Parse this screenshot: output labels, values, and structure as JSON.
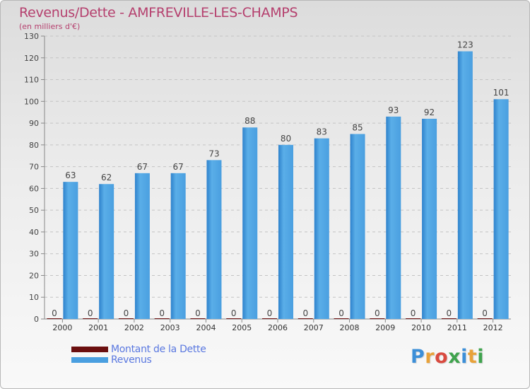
{
  "title": "Revenus/Dette - AMFREVILLE-LES-CHAMPS",
  "subtitle": "(en milliers d'€)",
  "brand": {
    "text": "Proxiti",
    "letter_colors": [
      "#3c8fd8",
      "#e8a23a",
      "#d94a3f",
      "#3fa34d",
      "#3c8fd8",
      "#e8a23a",
      "#3fa34d"
    ]
  },
  "legend": [
    {
      "label": "Montant de la Dette",
      "color": "#6b0f0f"
    },
    {
      "label": "Revenus",
      "color": "#4a9fe0"
    }
  ],
  "chart_data": {
    "type": "bar",
    "categories": [
      "2000",
      "2001",
      "2002",
      "2003",
      "2004",
      "2005",
      "2006",
      "2007",
      "2008",
      "2009",
      "2010",
      "2011",
      "2012"
    ],
    "series": [
      {
        "name": "Montant de la Dette",
        "color": "#6b0f0f",
        "values": [
          0,
          0,
          0,
          0,
          0,
          0,
          0,
          0,
          0,
          0,
          0,
          0,
          0
        ]
      },
      {
        "name": "Revenus",
        "color": "#4a9fe0",
        "values": [
          63,
          62,
          67,
          67,
          73,
          88,
          80,
          83,
          85,
          93,
          92,
          123,
          101
        ]
      }
    ],
    "ylim": [
      0,
      130
    ],
    "yticks": [
      0,
      10,
      20,
      30,
      40,
      50,
      60,
      70,
      80,
      90,
      100,
      110,
      120,
      130
    ],
    "grid": true,
    "legend_position": "bottom-left"
  }
}
